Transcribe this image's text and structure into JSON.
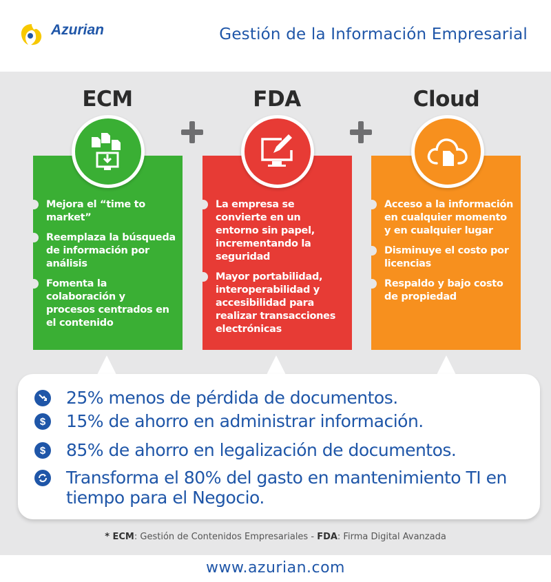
{
  "header": {
    "logo_text": "Azurian",
    "title": "Gestión de la Información Empresarial"
  },
  "columns": [
    {
      "title": "ECM",
      "items": [
        "Mejora el “time to market”",
        "Reemplaza la búsqueda de información por análisis",
        "Fomenta la colaboración y procesos centrados en el contenido"
      ]
    },
    {
      "title": "FDA",
      "items": [
        "La empresa se convierte en un entorno sin papel, incrementando la seguridad",
        "Mayor portabilidad, interoperabilidad y accesibilidad para realizar transacciones electrónicas"
      ]
    },
    {
      "title": "Cloud",
      "items": [
        "Acceso a la información en cualquier momento y en cualquier lugar",
        "Disminuye el costo por licencias",
        "Respaldo y bajo costo de propiedad"
      ]
    }
  ],
  "stats": [
    {
      "icon": "trend-down-icon",
      "text": "25% menos de pérdida de documentos."
    },
    {
      "icon": "dollar-icon",
      "symbol": "$",
      "text": "15% de ahorro en administrar información."
    },
    {
      "icon": "dollar-icon",
      "symbol": "$",
      "text": "85% de ahorro en legalización de documentos."
    },
    {
      "icon": "refresh-icon",
      "text": "Transforma el 80% del gasto en mantenimiento TI en tiempo para el Negocio."
    }
  ],
  "footnote": {
    "prefix": "* ",
    "ecm_abbr": "ECM",
    "ecm_def": ": Gestión de Contenidos Empresariales",
    "separator": " - ",
    "fda_abbr": "FDA",
    "fda_def": ": Firma Digital Avanzada"
  },
  "website": "www.azurian.com",
  "colors": {
    "brand_blue": "#1f56a8",
    "ecm_green": "#3aaf34",
    "fda_red": "#e73b35",
    "cloud_orange": "#f7901e",
    "logo_yellow": "#f7c800",
    "background_grey": "#e7e7e8"
  }
}
